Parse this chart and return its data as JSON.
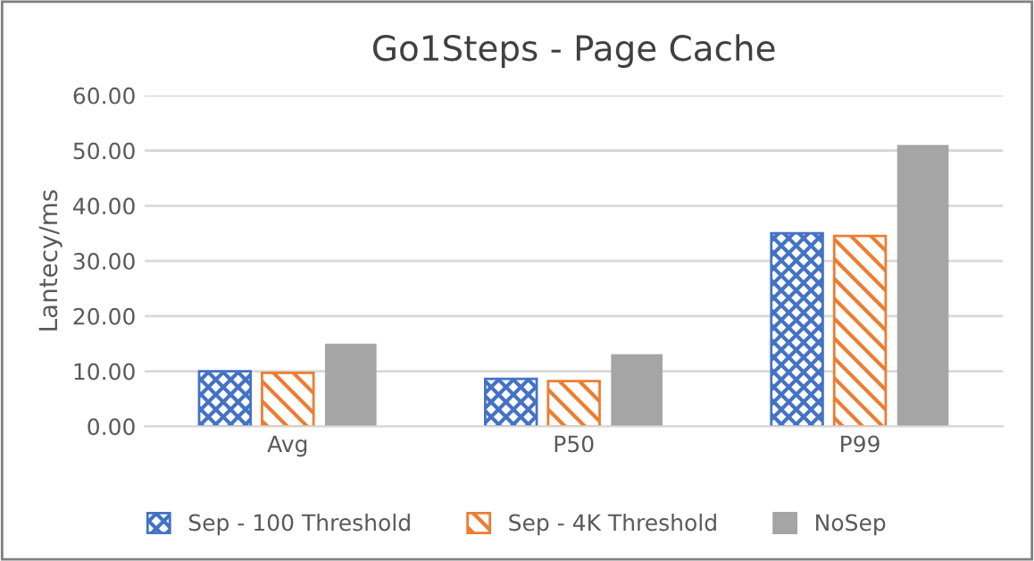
{
  "chart_data": {
    "type": "bar",
    "title": "Go1Steps - Page Cache",
    "ylabel": "Lantecy/ms",
    "categories": [
      "Avg",
      "P50",
      "P99"
    ],
    "series": [
      {
        "name": "Sep - 100 Threshold",
        "color": "#4472c4",
        "values": [
          10.0,
          8.6,
          35.0
        ]
      },
      {
        "name": "Sep - 4K Threshold",
        "color": "#ed7d31",
        "values": [
          9.7,
          8.2,
          34.5
        ]
      },
      {
        "name": "NoSep",
        "color": "#a5a5a5",
        "values": [
          15.0,
          13.1,
          51.0
        ]
      }
    ],
    "ylim": [
      0,
      60
    ],
    "yticks": [
      {
        "value": 0,
        "label": "0.00"
      },
      {
        "value": 10,
        "label": "10.00"
      },
      {
        "value": 20,
        "label": "20.00"
      },
      {
        "value": 30,
        "label": "30.00"
      },
      {
        "value": 40,
        "label": "40.00"
      },
      {
        "value": 50,
        "label": "50.00"
      },
      {
        "value": 60,
        "label": "60.00"
      }
    ],
    "grid": "y",
    "legend": "bottom"
  }
}
